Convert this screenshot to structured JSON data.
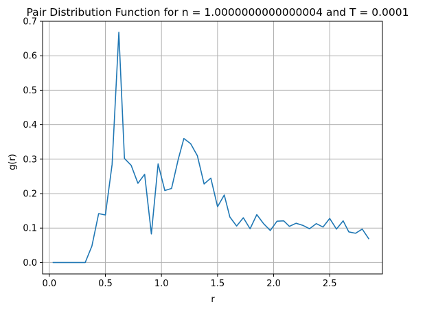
{
  "chart_data": {
    "type": "line",
    "title": "Pair Distribution Function for n = 1.0000000000000004 and T = 0.0001",
    "xlabel": "r",
    "ylabel": "g(r)",
    "xlim": [
      -0.06,
      2.97
    ],
    "ylim": [
      -0.033,
      0.7
    ],
    "grid": true,
    "x_ticks": [
      {
        "value": 0.0,
        "label": "0.0"
      },
      {
        "value": 0.5,
        "label": "0.5"
      },
      {
        "value": 1.0,
        "label": "1.0"
      },
      {
        "value": 1.5,
        "label": "1.5"
      },
      {
        "value": 2.0,
        "label": "2.0"
      },
      {
        "value": 2.5,
        "label": "2.5"
      }
    ],
    "y_ticks": [
      {
        "value": 0.0,
        "label": "0.0"
      },
      {
        "value": 0.1,
        "label": "0.1"
      },
      {
        "value": 0.2,
        "label": "0.2"
      },
      {
        "value": 0.3,
        "label": "0.3"
      },
      {
        "value": 0.4,
        "label": "0.4"
      },
      {
        "value": 0.5,
        "label": "0.5"
      },
      {
        "value": 0.6,
        "label": "0.6"
      },
      {
        "value": 0.7,
        "label": "0.7"
      }
    ],
    "series": [
      {
        "color": "#1f77b4",
        "x": [
          0.03,
          0.09,
          0.15,
          0.21,
          0.26,
          0.32,
          0.38,
          0.44,
          0.5,
          0.56,
          0.62,
          0.67,
          0.73,
          0.79,
          0.85,
          0.91,
          0.97,
          1.03,
          1.09,
          1.15,
          1.2,
          1.26,
          1.32,
          1.38,
          1.44,
          1.5,
          1.56,
          1.61,
          1.67,
          1.73,
          1.79,
          1.85,
          1.91,
          1.97,
          2.03,
          2.09,
          2.14,
          2.2,
          2.26,
          2.32,
          2.38,
          2.44,
          2.5,
          2.56,
          2.62,
          2.67,
          2.73,
          2.79,
          2.85
        ],
        "values": [
          0.0,
          0.0,
          0.0,
          0.0,
          0.0,
          0.0,
          0.048,
          0.142,
          0.138,
          0.285,
          0.668,
          0.302,
          0.282,
          0.23,
          0.256,
          0.083,
          0.286,
          0.209,
          0.215,
          0.3,
          0.36,
          0.345,
          0.31,
          0.228,
          0.245,
          0.162,
          0.196,
          0.132,
          0.106,
          0.13,
          0.098,
          0.139,
          0.113,
          0.093,
          0.12,
          0.121,
          0.105,
          0.114,
          0.108,
          0.098,
          0.113,
          0.103,
          0.128,
          0.097,
          0.121,
          0.089,
          0.085,
          0.097,
          0.068
        ]
      }
    ]
  }
}
